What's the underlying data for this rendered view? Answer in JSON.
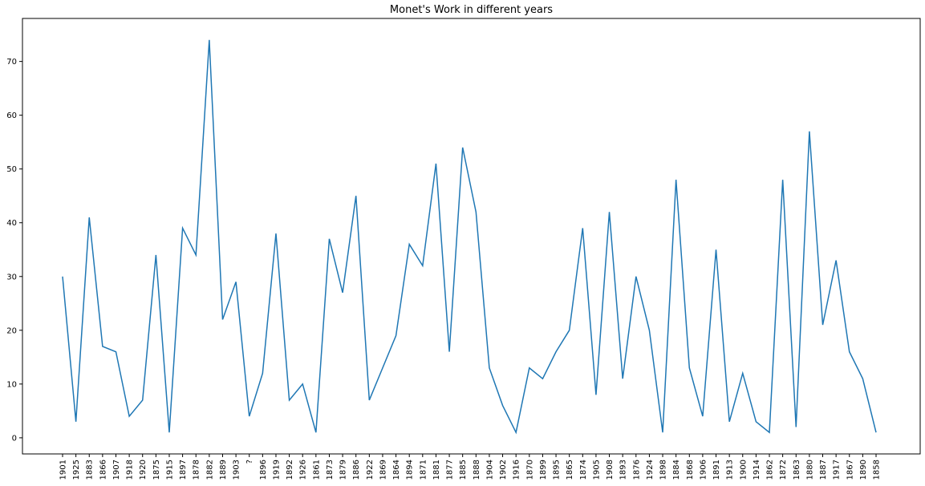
{
  "chart_data": {
    "type": "line",
    "title": "Monet's Work in different years",
    "xlabel": "",
    "ylabel": "",
    "ylim": [
      -3,
      78
    ],
    "yticks": [
      0,
      10,
      20,
      30,
      40,
      50,
      60,
      70
    ],
    "grid": false,
    "line_color": "#1f77b4",
    "categories": [
      "1901",
      "1925",
      "1883",
      "1866",
      "1907",
      "1918",
      "1920",
      "1875",
      "1915",
      "1897",
      "1878",
      "1882",
      "1889",
      "1903",
      "?",
      "1896",
      "1919",
      "1892",
      "1926",
      "1861",
      "1873",
      "1879",
      "1886",
      "1922",
      "1869",
      "1864",
      "1894",
      "1871",
      "1881",
      "1877",
      "1885",
      "1888",
      "1904",
      "1902",
      "1916",
      "1870",
      "1899",
      "1895",
      "1865",
      "1874",
      "1905",
      "1908",
      "1893",
      "1876",
      "1924",
      "1898",
      "1884",
      "1868",
      "1906",
      "1891",
      "1913",
      "1900",
      "1914",
      "1862",
      "1872",
      "1863",
      "1880",
      "1887",
      "1917",
      "1867",
      "1890",
      "1858"
    ],
    "series": [
      {
        "values": [
          30,
          3,
          41,
          17,
          16,
          4,
          7,
          34,
          1,
          39,
          34,
          74,
          22,
          29,
          4,
          12,
          38,
          7,
          10,
          1,
          37,
          27,
          45,
          7,
          13,
          19,
          36,
          32,
          51,
          16,
          54,
          42,
          13,
          6,
          1,
          13,
          11,
          16,
          20,
          39,
          8,
          42,
          11,
          30,
          20,
          1,
          48,
          13,
          4,
          35,
          3,
          12,
          3,
          1,
          48,
          2,
          57,
          21,
          33,
          16,
          11,
          1
        ]
      }
    ]
  }
}
